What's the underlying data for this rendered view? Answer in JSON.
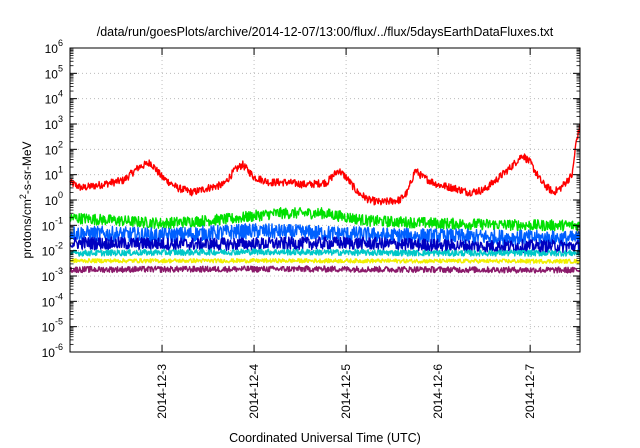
{
  "chart_data": {
    "type": "line",
    "title": "/data/run/goesPlots/archive/2014-12-07/13:00/flux/../flux/5daysEarthDataFluxes.txt",
    "xlabel": "Coordinated Universal Time (UTC)",
    "ylabel_main": "protons/cm",
    "ylabel_sup": "2",
    "ylabel_tail": "-s-sr-MeV",
    "y_scale": "log",
    "ylim": [
      1e-06,
      1000000.0
    ],
    "y_ticks": [
      {
        "base": "10",
        "exp": "-6"
      },
      {
        "base": "10",
        "exp": "-5"
      },
      {
        "base": "10",
        "exp": "-4"
      },
      {
        "base": "10",
        "exp": "-3"
      },
      {
        "base": "10",
        "exp": "-2"
      },
      {
        "base": "10",
        "exp": "-1"
      },
      {
        "base": "10",
        "exp": "0"
      },
      {
        "base": "10",
        "exp": "1"
      },
      {
        "base": "10",
        "exp": "2"
      },
      {
        "base": "10",
        "exp": "3"
      },
      {
        "base": "10",
        "exp": "4"
      },
      {
        "base": "10",
        "exp": "5"
      },
      {
        "base": "10",
        "exp": "6"
      }
    ],
    "xlim": [
      "2014-12-02",
      "2014-12-07T13:00"
    ],
    "x_ticks": [
      "2014-12-3",
      "2014-12-4",
      "2014-12-5",
      "2014-12-6",
      "2014-12-7"
    ],
    "grid": true,
    "series": [
      {
        "color": "#ff0000",
        "noise": 0.15,
        "points": [
          [
            "2014-12-02T00:00",
            5
          ],
          [
            "2014-12-02T03:00",
            3
          ],
          [
            "2014-12-02T08:00",
            4
          ],
          [
            "2014-12-02T14:00",
            6
          ],
          [
            "2014-12-02T18:00",
            20
          ],
          [
            "2014-12-02T21:00",
            30
          ],
          [
            "2014-12-03T00:00",
            8
          ],
          [
            "2014-12-03T04:00",
            3
          ],
          [
            "2014-12-03T08:00",
            2
          ],
          [
            "2014-12-03T12:00",
            3
          ],
          [
            "2014-12-03T16:00",
            4
          ],
          [
            "2014-12-03T19:00",
            15
          ],
          [
            "2014-12-03T21:00",
            25
          ],
          [
            "2014-12-04T00:00",
            8
          ],
          [
            "2014-12-04T04:00",
            5
          ],
          [
            "2014-12-04T08:00",
            5
          ],
          [
            "2014-12-04T14:00",
            4
          ],
          [
            "2014-12-04T19:00",
            5
          ],
          [
            "2014-12-04T22:00",
            15
          ],
          [
            "2014-12-05T00:00",
            8
          ],
          [
            "2014-12-05T03:00",
            2
          ],
          [
            "2014-12-05T06:00",
            1
          ],
          [
            "2014-12-05T09:00",
            0.8
          ],
          [
            "2014-12-05T14:00",
            1
          ],
          [
            "2014-12-05T16:00",
            2
          ],
          [
            "2014-12-05T18:00",
            15
          ],
          [
            "2014-12-05T20:00",
            8
          ],
          [
            "2014-12-06T00:00",
            4
          ],
          [
            "2014-12-06T04:00",
            3
          ],
          [
            "2014-12-06T08:00",
            2
          ],
          [
            "2014-12-06T12:00",
            2.5
          ],
          [
            "2014-12-06T16:00",
            8
          ],
          [
            "2014-12-06T19:00",
            20
          ],
          [
            "2014-12-06T22:00",
            60
          ],
          [
            "2014-12-07T00:00",
            30
          ],
          [
            "2014-12-07T03:00",
            5
          ],
          [
            "2014-12-07T06:00",
            2
          ],
          [
            "2014-12-07T08:00",
            3
          ],
          [
            "2014-12-07T11:00",
            10
          ],
          [
            "2014-12-07T12:00",
            200
          ],
          [
            "2014-12-07T13:00",
            800
          ]
        ]
      },
      {
        "color": "#00e000",
        "noise": 0.22,
        "points": [
          [
            "2014-12-02T00:00",
            0.2
          ],
          [
            "2014-12-03T00:00",
            0.12
          ],
          [
            "2014-12-03T18:00",
            0.18
          ],
          [
            "2014-12-04T06:00",
            0.3
          ],
          [
            "2014-12-04T18:00",
            0.3
          ],
          [
            "2014-12-05T06:00",
            0.15
          ],
          [
            "2014-12-06T00:00",
            0.12
          ],
          [
            "2014-12-07T00:00",
            0.1
          ],
          [
            "2014-12-07T13:00",
            0.1
          ]
        ]
      },
      {
        "color": "#0060ff",
        "noise": 0.3,
        "points": [
          [
            "2014-12-02T00:00",
            0.05
          ],
          [
            "2014-12-03T00:00",
            0.04
          ],
          [
            "2014-12-04T00:00",
            0.06
          ],
          [
            "2014-12-04T18:00",
            0.05
          ],
          [
            "2014-12-05T12:00",
            0.04
          ],
          [
            "2014-12-06T12:00",
            0.035
          ],
          [
            "2014-12-07T13:00",
            0.03
          ]
        ]
      },
      {
        "color": "#0000c0",
        "noise": 0.25,
        "points": [
          [
            "2014-12-02T00:00",
            0.02
          ],
          [
            "2014-12-03T12:00",
            0.018
          ],
          [
            "2014-12-05T00:00",
            0.02
          ],
          [
            "2014-12-06T12:00",
            0.015
          ],
          [
            "2014-12-07T13:00",
            0.015
          ]
        ]
      },
      {
        "color": "#00c8c8",
        "noise": 0.12,
        "points": [
          [
            "2014-12-02T00:00",
            0.008
          ],
          [
            "2014-12-04T00:00",
            0.009
          ],
          [
            "2014-12-06T00:00",
            0.008
          ],
          [
            "2014-12-07T13:00",
            0.008
          ]
        ]
      },
      {
        "color": "#f0f000",
        "noise": 0.08,
        "points": [
          [
            "2014-12-02T00:00",
            0.004
          ],
          [
            "2014-12-04T12:00",
            0.004
          ],
          [
            "2014-12-07T13:00",
            0.0038
          ]
        ]
      },
      {
        "color": "#8b1a6b",
        "noise": 0.12,
        "points": [
          [
            "2014-12-02T00:00",
            0.0018
          ],
          [
            "2014-12-04T12:00",
            0.0019
          ],
          [
            "2014-12-07T13:00",
            0.0017
          ]
        ]
      }
    ]
  }
}
